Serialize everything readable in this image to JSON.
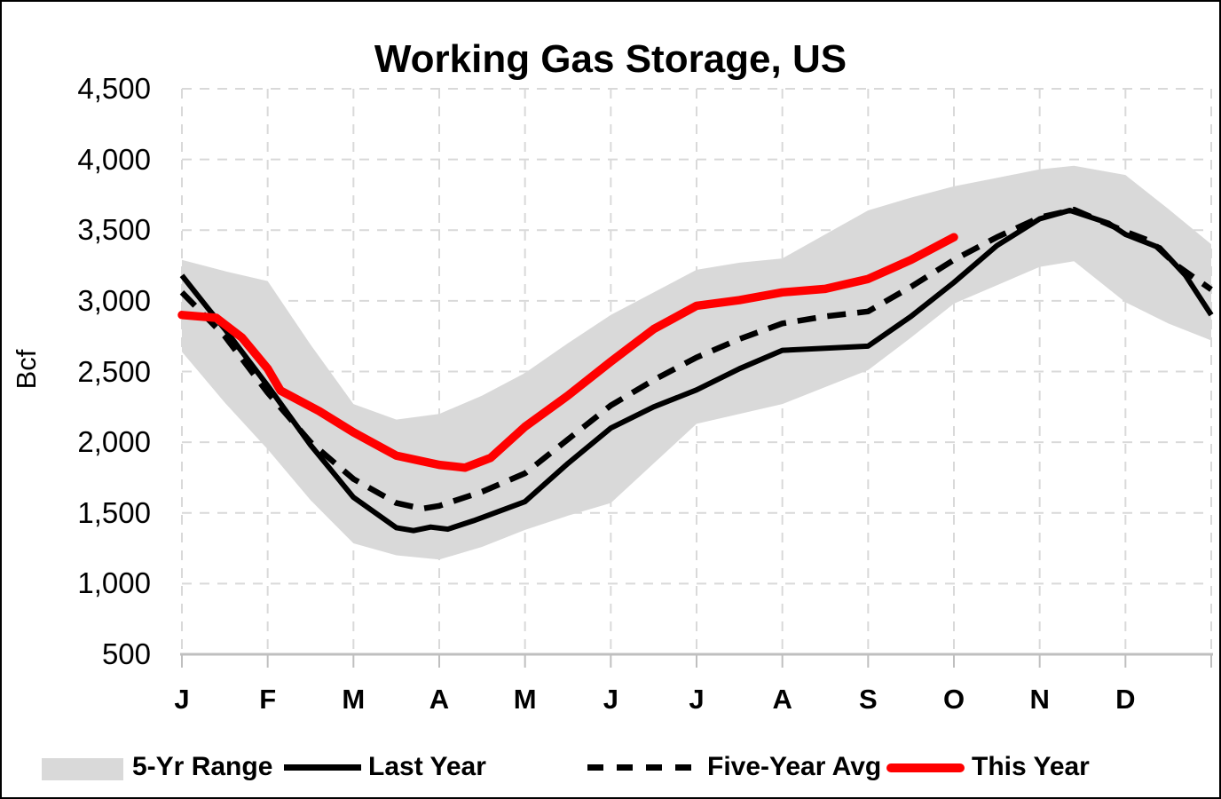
{
  "chart": {
    "title": "Working Gas Storage, US",
    "y_axis_label": "Bcf"
  },
  "colors": {
    "this_year": "#FF0000",
    "last_year": "#000000",
    "five_year_avg": "#000000",
    "range_band": "#D9D9D9",
    "gridline": "#D9D9D9",
    "axis_line": "#BFBFBF",
    "text": "#000000"
  },
  "legend": {
    "items": [
      {
        "label": "5-Yr Range",
        "swatch": "gray-band"
      },
      {
        "label": "Last Year",
        "swatch": "solid-black-line"
      },
      {
        "label": "Five-Year Avg",
        "swatch": "dashed-black-line"
      },
      {
        "label": "This Year",
        "swatch": "thick-red-line"
      }
    ]
  },
  "chart_data": {
    "type": "line",
    "title": "Working Gas Storage, US",
    "ylabel": "Bcf",
    "xlabel": "",
    "grid": "dashed light gray, horizontal and vertical",
    "legend_position": "bottom",
    "x_axis": {
      "months": [
        "J",
        "F",
        "M",
        "A",
        "M",
        "J",
        "J",
        "A",
        "S",
        "O",
        "N",
        "D"
      ],
      "note": "x units are fractional months, 0 = Jan 1, 12 = end of Dec"
    },
    "y_axis": {
      "min": 500,
      "max": 4500,
      "tick_step": 500,
      "ticks": [
        {
          "value": 4500,
          "label": "4,500"
        },
        {
          "value": 4000,
          "label": "4,000"
        },
        {
          "value": 3500,
          "label": "3,500"
        },
        {
          "value": 3000,
          "label": "3,000"
        },
        {
          "value": 2500,
          "label": "2,500"
        },
        {
          "value": 2000,
          "label": "2,000"
        },
        {
          "value": 1500,
          "label": "1,500"
        },
        {
          "value": 1000,
          "label": "1,000"
        },
        {
          "value": 500,
          "label": "500"
        }
      ]
    },
    "band": {
      "name": "5-Yr Range",
      "points": [
        [
          0,
          3290,
          2640
        ],
        [
          0.5,
          3210,
          2280
        ],
        [
          1,
          3140,
          1950
        ],
        [
          1.5,
          2690,
          1590
        ],
        [
          2,
          2270,
          1285
        ],
        [
          2.5,
          2160,
          1200
        ],
        [
          3,
          2200,
          1170
        ],
        [
          3.5,
          2330,
          1260
        ],
        [
          4,
          2490,
          1380
        ],
        [
          4.5,
          2700,
          1480
        ],
        [
          5,
          2900,
          1570
        ],
        [
          5.5,
          3060,
          1850
        ],
        [
          6,
          3220,
          2130
        ],
        [
          6.5,
          3270,
          2200
        ],
        [
          7,
          3300,
          2270
        ],
        [
          7.5,
          3470,
          2390
        ],
        [
          8,
          3640,
          2510
        ],
        [
          8.5,
          3730,
          2740
        ],
        [
          9,
          3810,
          2980
        ],
        [
          9.5,
          3870,
          3110
        ],
        [
          10,
          3930,
          3240
        ],
        [
          10.4,
          3955,
          3280
        ],
        [
          11,
          3890,
          2990
        ],
        [
          11.5,
          3650,
          2840
        ],
        [
          12,
          3400,
          2720
        ]
      ]
    },
    "series": [
      {
        "name": "Last Year",
        "style": "solid",
        "points": [
          [
            0,
            3180
          ],
          [
            0.3,
            2950
          ],
          [
            0.5,
            2800
          ],
          [
            1,
            2400
          ],
          [
            1.5,
            1980
          ],
          [
            2,
            1610
          ],
          [
            2.5,
            1395
          ],
          [
            2.7,
            1375
          ],
          [
            2.9,
            1400
          ],
          [
            3.1,
            1385
          ],
          [
            3.4,
            1445
          ],
          [
            4,
            1580
          ],
          [
            4.5,
            1850
          ],
          [
            5,
            2100
          ],
          [
            5.5,
            2250
          ],
          [
            6,
            2370
          ],
          [
            6.5,
            2520
          ],
          [
            7,
            2650
          ],
          [
            7.5,
            2665
          ],
          [
            8,
            2680
          ],
          [
            8.5,
            2890
          ],
          [
            9,
            3130
          ],
          [
            9.5,
            3390
          ],
          [
            10,
            3580
          ],
          [
            10.35,
            3640
          ],
          [
            10.8,
            3550
          ],
          [
            11,
            3470
          ],
          [
            11.4,
            3375
          ],
          [
            11.7,
            3180
          ],
          [
            12,
            2900
          ]
        ]
      },
      {
        "name": "Five-Year Avg",
        "style": "dashed",
        "points": [
          [
            0,
            3060
          ],
          [
            0.5,
            2750
          ],
          [
            1,
            2350
          ],
          [
            1.5,
            2000
          ],
          [
            2,
            1740
          ],
          [
            2.5,
            1570
          ],
          [
            2.8,
            1530
          ],
          [
            3,
            1550
          ],
          [
            3.5,
            1650
          ],
          [
            4,
            1780
          ],
          [
            4.5,
            2020
          ],
          [
            5,
            2260
          ],
          [
            5.5,
            2440
          ],
          [
            6,
            2600
          ],
          [
            6.5,
            2730
          ],
          [
            7,
            2840
          ],
          [
            7.5,
            2890
          ],
          [
            8,
            2925
          ],
          [
            8.5,
            3100
          ],
          [
            9,
            3290
          ],
          [
            9.5,
            3450
          ],
          [
            10,
            3590
          ],
          [
            10.4,
            3645
          ],
          [
            11,
            3490
          ],
          [
            11.3,
            3420
          ],
          [
            11.6,
            3250
          ],
          [
            12,
            3080
          ]
        ]
      },
      {
        "name": "This Year",
        "style": "thick-red",
        "points": [
          [
            0,
            2900
          ],
          [
            0.4,
            2880
          ],
          [
            0.7,
            2740
          ],
          [
            1,
            2520
          ],
          [
            1.15,
            2365
          ],
          [
            1.6,
            2220
          ],
          [
            2,
            2070
          ],
          [
            2.5,
            1905
          ],
          [
            3,
            1840
          ],
          [
            3.3,
            1820
          ],
          [
            3.6,
            1890
          ],
          [
            4,
            2110
          ],
          [
            4.5,
            2330
          ],
          [
            5,
            2570
          ],
          [
            5.5,
            2800
          ],
          [
            6,
            2965
          ],
          [
            6.5,
            3005
          ],
          [
            7,
            3060
          ],
          [
            7.5,
            3085
          ],
          [
            8,
            3155
          ],
          [
            8.5,
            3290
          ],
          [
            9,
            3450
          ]
        ]
      }
    ]
  }
}
